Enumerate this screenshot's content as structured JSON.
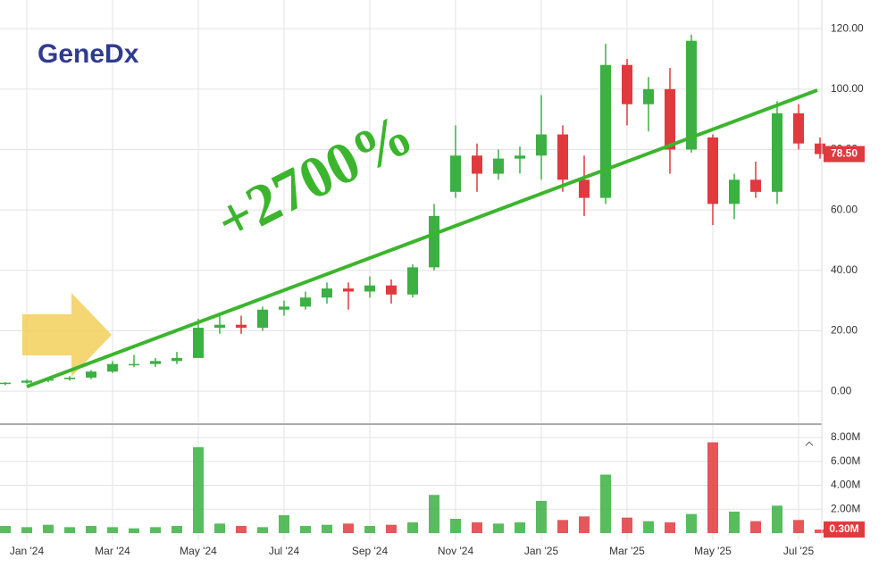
{
  "chart_data": {
    "type": "candlestick",
    "logo": "GeneDx",
    "annotation": "+2700%",
    "categories": [
      null,
      "Jan '24",
      null,
      null,
      null,
      "Mar '24",
      null,
      null,
      null,
      "May '24",
      null,
      null,
      null,
      "Jul '24",
      null,
      null,
      null,
      "Sep '24",
      null,
      null,
      null,
      "Nov '24",
      null,
      null,
      null,
      "Jan '25",
      null,
      null,
      null,
      "Mar '25",
      null,
      null,
      null,
      "May '25",
      null,
      null,
      null,
      "Jul '25",
      null
    ],
    "open": [
      2.5,
      2.8,
      3.5,
      4,
      4.5,
      6.5,
      9,
      9,
      10,
      11,
      21,
      22,
      21,
      27,
      28,
      31,
      34,
      33,
      35,
      32,
      41,
      66,
      78,
      72,
      77,
      78,
      85,
      70,
      64,
      108,
      95,
      100,
      80,
      84,
      62,
      70,
      66,
      92,
      82
    ],
    "high": [
      3,
      4,
      4.5,
      5,
      7,
      10,
      12,
      11,
      13,
      24,
      25,
      25,
      28,
      30,
      33,
      36,
      36,
      38,
      37,
      42,
      62,
      88,
      82,
      80,
      81,
      98,
      88,
      78,
      115,
      110,
      104,
      107,
      118,
      85,
      72,
      76,
      96,
      95,
      84
    ],
    "low": [
      2,
      2.5,
      3,
      3.5,
      4,
      6,
      8,
      8,
      9,
      11,
      19,
      19,
      20,
      25,
      27,
      29,
      27,
      31,
      29,
      31,
      40,
      64,
      66,
      70,
      72,
      70,
      66,
      58,
      62,
      88,
      86,
      72,
      79,
      55,
      57,
      64,
      62,
      80,
      77
    ],
    "close": [
      2.8,
      3.5,
      4,
      4.5,
      6.5,
      9,
      9,
      10,
      11,
      21,
      22,
      21,
      27,
      28,
      31,
      34,
      33,
      35,
      32,
      41,
      58,
      78,
      72,
      77,
      78,
      85,
      70,
      64,
      108,
      95,
      100,
      80,
      116,
      62,
      70,
      66,
      92,
      82,
      78.5
    ],
    "volume": [
      600000,
      500000,
      700000,
      500000,
      600000,
      500000,
      400000,
      500000,
      600000,
      7200000,
      800000,
      600000,
      500000,
      1500000,
      600000,
      700000,
      800000,
      600000,
      700000,
      900000,
      3200000,
      1200000,
      900000,
      800000,
      900000,
      2700000,
      1100000,
      1400000,
      4900000,
      1300000,
      1000000,
      900000,
      1600000,
      7600000,
      1800000,
      1000000,
      2300000,
      1100000,
      300000
    ],
    "up_color": "#3cb043",
    "down_color": "#e0393e",
    "ylim": [
      -10.9,
      129.5
    ],
    "yticks": [
      {
        "value": 0,
        "label": "0.00"
      },
      {
        "value": 20,
        "label": "20.00"
      },
      {
        "value": 40,
        "label": "40.00"
      },
      {
        "value": 60,
        "label": "60.00"
      },
      {
        "value": 80,
        "label": "80.00"
      },
      {
        "value": 100,
        "label": "100.00"
      },
      {
        "value": 120,
        "label": "120.00"
      }
    ],
    "vlim": [
      -220000,
      8900000
    ],
    "vticks": [
      {
        "value": 2000000,
        "label": "2.00M"
      },
      {
        "value": 4000000,
        "label": "4.00M"
      },
      {
        "value": 6000000,
        "label": "6.00M"
      },
      {
        "value": 8000000,
        "label": "8.00M"
      }
    ],
    "last_price": {
      "value": 78.5,
      "label": "78.50"
    },
    "last_volume": {
      "value": 300000,
      "label": "0.30M"
    },
    "grid": true
  }
}
